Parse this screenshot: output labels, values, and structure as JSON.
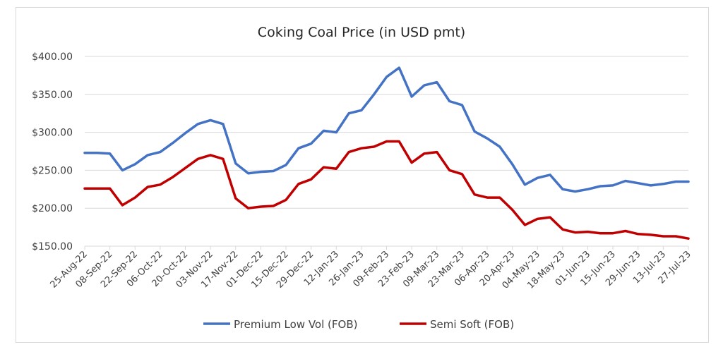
{
  "chart_data": {
    "type": "line",
    "title": "Coking Coal Price (in USD pmt)",
    "xlabel": "",
    "ylabel": "",
    "ylim": [
      150,
      400
    ],
    "y_ticks": [
      "$150.00",
      "$200.00",
      "$250.00",
      "$300.00",
      "$350.00",
      "$400.00"
    ],
    "y_tick_values": [
      150,
      200,
      250,
      300,
      350,
      400
    ],
    "grid": true,
    "legend": "bottom",
    "x": [
      "25-Aug-22",
      "01-Sep-22",
      "08-Sep-22",
      "15-Sep-22",
      "22-Sep-22",
      "29-Sep-22",
      "06-Oct-22",
      "13-Oct-22",
      "20-Oct-22",
      "27-Oct-22",
      "03-Nov-22",
      "10-Nov-22",
      "17-Nov-22",
      "24-Nov-22",
      "01-Dec-22",
      "08-Dec-22",
      "15-Dec-22",
      "22-Dec-22",
      "29-Dec-22",
      "05-Jan-23",
      "12-Jan-23",
      "19-Jan-23",
      "26-Jan-23",
      "02-Feb-23",
      "09-Feb-23",
      "16-Feb-23",
      "23-Feb-23",
      "02-Mar-23",
      "09-Mar-23",
      "16-Mar-23",
      "23-Mar-23",
      "30-Mar-23",
      "06-Apr-23",
      "13-Apr-23",
      "20-Apr-23",
      "27-Apr-23",
      "04-May-23",
      "11-May-23",
      "18-May-23",
      "25-May-23",
      "01-Jun-23",
      "08-Jun-23",
      "15-Jun-23",
      "22-Jun-23",
      "29-Jun-23",
      "06-Jul-23",
      "13-Jul-23",
      "20-Jul-23",
      "27-Jul-23"
    ],
    "x_tick_labels": [
      "25-Aug-22",
      "08-Sep-22",
      "22-Sep-22",
      "06-Oct-22",
      "20-Oct-22",
      "03-Nov-22",
      "17-Nov-22",
      "01-Dec-22",
      "15-Dec-22",
      "29-Dec-22",
      "12-Jan-23",
      "26-Jan-23",
      "09-Feb-23",
      "23-Feb-23",
      "09-Mar-23",
      "23-Mar-23",
      "06-Apr-23",
      "20-Apr-23",
      "04-May-23",
      "18-May-23",
      "01-Jun-23",
      "15-Jun-23",
      "29-Jun-23",
      "13-Jul-23",
      "27-Jul-23"
    ],
    "series": [
      {
        "name": "Premium Low Vol (FOB)",
        "color": "#4472C4",
        "values": [
          273,
          273,
          272,
          250,
          258,
          270,
          274,
          286,
          299,
          311,
          316,
          311,
          259,
          246,
          248,
          249,
          257,
          279,
          285,
          302,
          300,
          325,
          329,
          350,
          373,
          385,
          347,
          362,
          366,
          341,
          336,
          301,
          292,
          281,
          258,
          231,
          240,
          244,
          225,
          222,
          225,
          229,
          230,
          236,
          233,
          230,
          232,
          235,
          235
        ]
      },
      {
        "name": "Semi Soft (FOB)",
        "color": "#C00000",
        "values": [
          226,
          226,
          226,
          204,
          214,
          228,
          231,
          241,
          253,
          265,
          270,
          265,
          213,
          200,
          202,
          203,
          211,
          232,
          238,
          254,
          252,
          274,
          279,
          281,
          288,
          288,
          260,
          272,
          274,
          250,
          245,
          218,
          214,
          214,
          198,
          178,
          186,
          188,
          172,
          168,
          169,
          167,
          167,
          170,
          166,
          165,
          163,
          163,
          160
        ]
      }
    ]
  }
}
